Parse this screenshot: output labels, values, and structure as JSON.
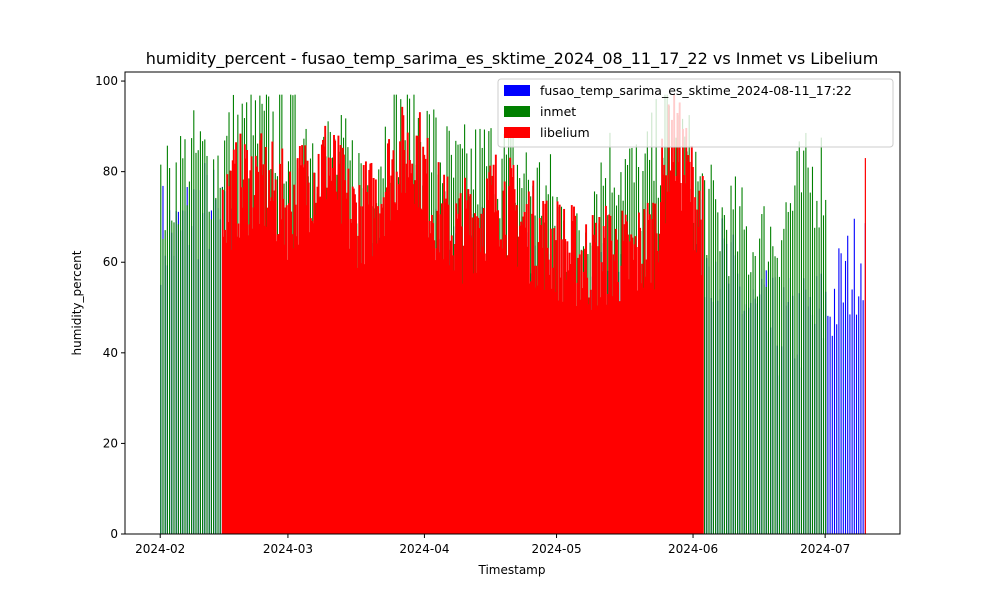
{
  "chart_data": {
    "type": "bar",
    "title": "humidity_percent - fusao_temp_sarima_es_sktime_2024_08_11_17_22 vs Inmet vs Libelium",
    "xlabel": "Timestamp",
    "ylabel": "humidity_percent",
    "ylim": [
      0,
      102
    ],
    "yticks": [
      0,
      20,
      40,
      60,
      80,
      100
    ],
    "xlim": [
      "2024-01-24",
      "2024-07-18"
    ],
    "xticks": [
      "2024-02",
      "2024-03",
      "2024-04",
      "2024-05",
      "2024-06",
      "2024-07"
    ],
    "xtick_dates": [
      "2024-02-01",
      "2024-03-01",
      "2024-04-01",
      "2024-05-01",
      "2024-06-01",
      "2024-07-01"
    ],
    "grid": false,
    "legend_position": "top-right",
    "series": [
      {
        "name": "fusao_temp_sarima_es_sktime_2024-08-11_17:22",
        "color": "#0000ff",
        "start": "2024-02-01",
        "end": "2024-07-10",
        "points": [
          [
            "2024-02-01",
            67
          ],
          [
            "2024-02-05",
            65
          ],
          [
            "2024-02-08",
            71
          ],
          [
            "2024-02-12",
            72
          ],
          [
            "2024-02-16",
            65
          ],
          [
            "2024-02-20",
            60
          ],
          [
            "2024-03-01",
            52
          ],
          [
            "2024-03-10",
            60
          ],
          [
            "2024-03-20",
            55
          ],
          [
            "2024-04-01",
            60
          ],
          [
            "2024-04-10",
            62
          ],
          [
            "2024-04-20",
            58
          ],
          [
            "2024-05-01",
            50
          ],
          [
            "2024-05-05",
            45
          ],
          [
            "2024-05-10",
            55
          ],
          [
            "2024-05-20",
            50
          ],
          [
            "2024-05-28",
            56
          ],
          [
            "2024-06-01",
            60
          ],
          [
            "2024-06-05",
            64
          ],
          [
            "2024-06-10",
            55
          ],
          [
            "2024-06-15",
            48
          ],
          [
            "2024-06-20",
            45
          ],
          [
            "2024-06-25",
            46
          ],
          [
            "2024-07-01",
            49
          ],
          [
            "2024-07-05",
            55
          ],
          [
            "2024-07-10",
            64
          ]
        ]
      },
      {
        "name": "inmet",
        "color": "#008000",
        "start": "2024-02-01",
        "end": "2024-07-01",
        "points": [
          [
            "2024-02-01",
            72
          ],
          [
            "2024-02-05",
            80
          ],
          [
            "2024-02-09",
            83
          ],
          [
            "2024-02-13",
            80
          ],
          [
            "2024-02-18",
            88
          ],
          [
            "2024-02-25",
            88
          ],
          [
            "2024-03-05",
            88
          ],
          [
            "2024-03-12",
            82
          ],
          [
            "2024-03-18",
            78
          ],
          [
            "2024-03-25",
            90
          ],
          [
            "2024-04-01",
            88
          ],
          [
            "2024-04-08",
            78
          ],
          [
            "2024-04-15",
            82
          ],
          [
            "2024-04-22",
            80
          ],
          [
            "2024-05-01",
            72
          ],
          [
            "2024-05-05",
            60
          ],
          [
            "2024-05-10",
            78
          ],
          [
            "2024-05-15",
            82
          ],
          [
            "2024-05-20",
            76
          ],
          [
            "2024-05-26",
            90
          ],
          [
            "2024-06-01",
            80
          ],
          [
            "2024-06-05",
            70
          ],
          [
            "2024-06-10",
            68
          ],
          [
            "2024-06-15",
            63
          ],
          [
            "2024-06-20",
            66
          ],
          [
            "2024-06-25",
            76
          ],
          [
            "2024-07-01",
            80
          ]
        ]
      },
      {
        "name": "libelium",
        "color": "#ff0000",
        "start": "2024-02-15",
        "end": "2024-06-03",
        "points": [
          [
            "2024-02-15",
            72
          ],
          [
            "2024-02-20",
            78
          ],
          [
            "2024-02-25",
            76
          ],
          [
            "2024-03-01",
            72
          ],
          [
            "2024-03-05",
            78
          ],
          [
            "2024-03-10",
            82
          ],
          [
            "2024-03-15",
            70
          ],
          [
            "2024-03-20",
            72
          ],
          [
            "2024-03-25",
            82
          ],
          [
            "2024-03-30",
            85
          ],
          [
            "2024-04-03",
            72
          ],
          [
            "2024-04-08",
            66
          ],
          [
            "2024-04-13",
            70
          ],
          [
            "2024-04-18",
            75
          ],
          [
            "2024-04-23",
            68
          ],
          [
            "2024-04-28",
            65
          ],
          [
            "2024-05-03",
            62
          ],
          [
            "2024-05-08",
            60
          ],
          [
            "2024-05-13",
            62
          ],
          [
            "2024-05-18",
            60
          ],
          [
            "2024-05-23",
            66
          ],
          [
            "2024-05-27",
            88
          ],
          [
            "2024-05-31",
            78
          ],
          [
            "2024-06-03",
            68
          ]
        ],
        "extra": [
          [
            "2024-07-10",
            83
          ]
        ]
      }
    ]
  }
}
